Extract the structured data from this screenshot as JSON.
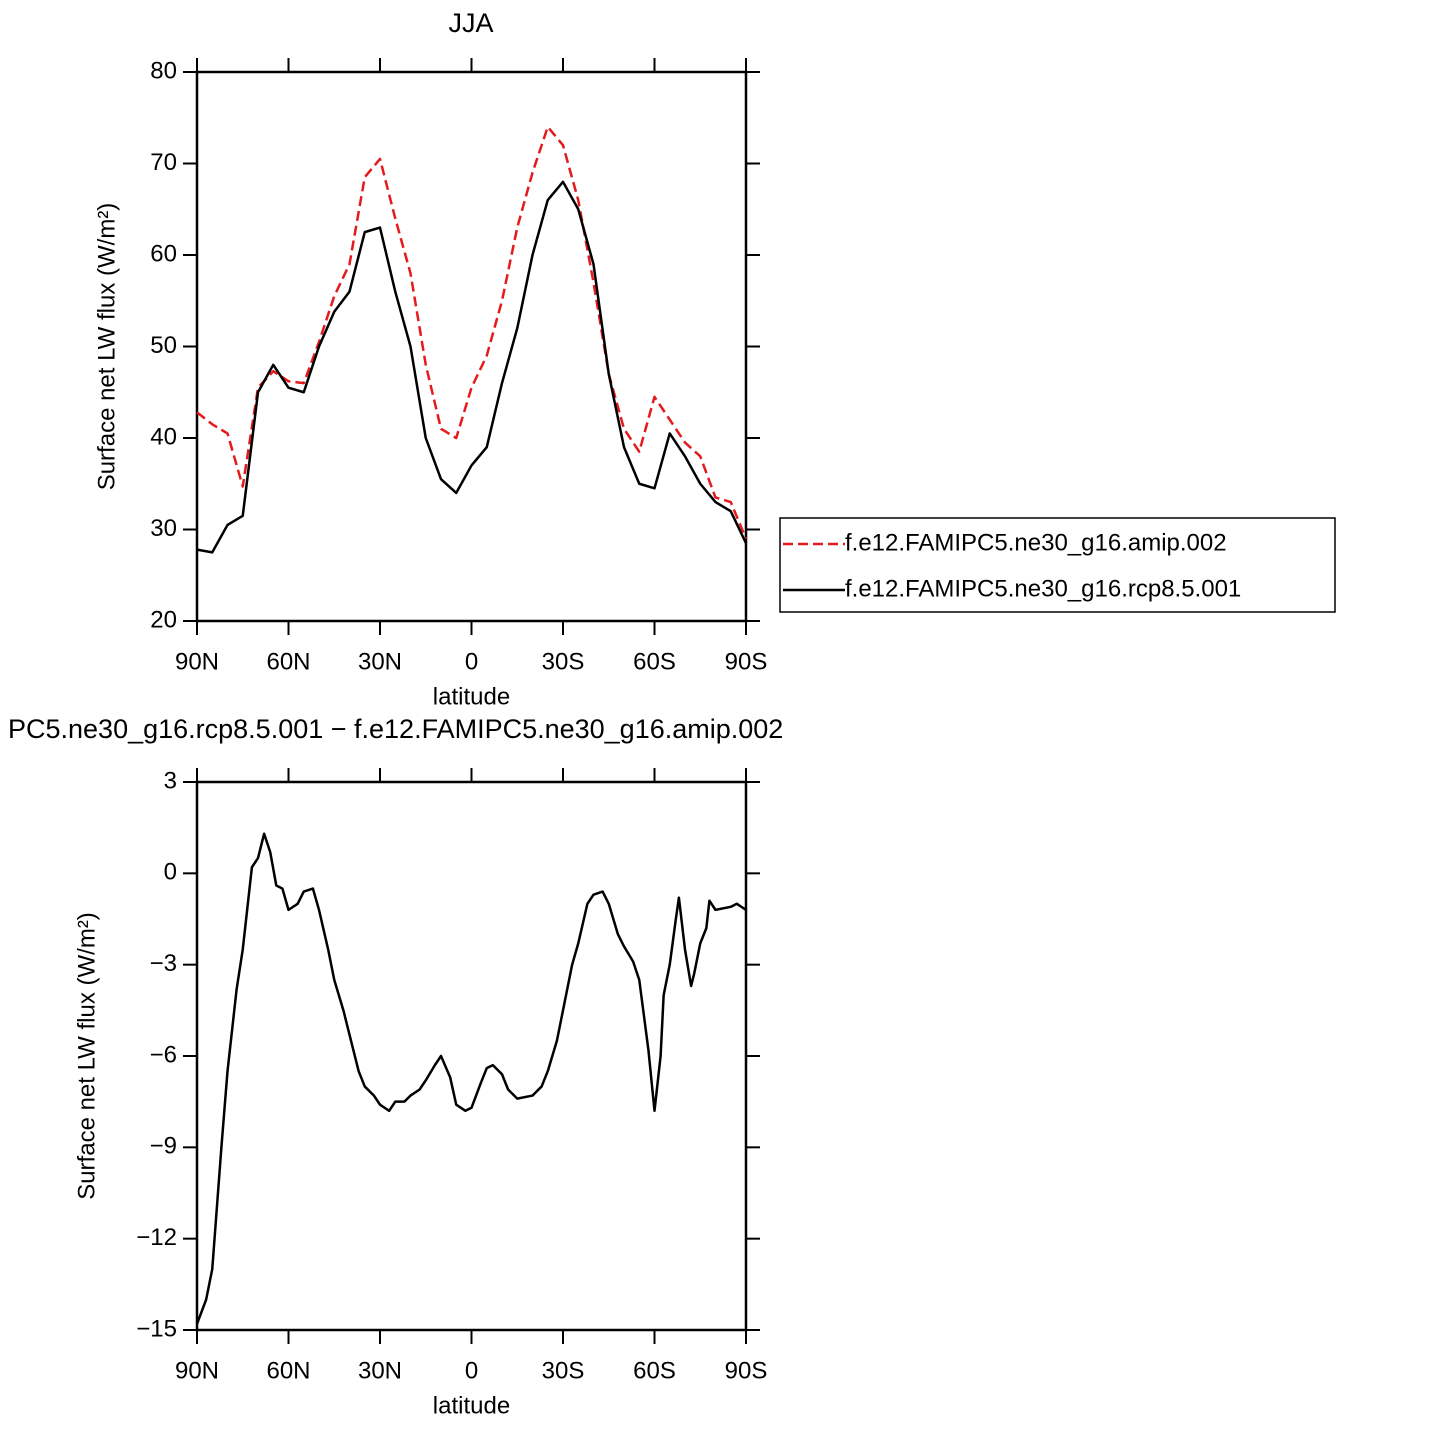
{
  "chart_data": [
    {
      "type": "line",
      "title": "JJA",
      "xlabel": "latitude",
      "ylabel": "Surface net LW flux (W/m²)",
      "x": [
        90,
        85,
        80,
        75,
        70,
        65,
        60,
        55,
        50,
        45,
        40,
        35,
        30,
        25,
        20,
        15,
        10,
        5,
        0,
        -5,
        -10,
        -15,
        -20,
        -25,
        -30,
        -35,
        -40,
        -45,
        -50,
        -55,
        -60,
        -65,
        -70,
        -75,
        -80,
        -85,
        -90
      ],
      "series": [
        {
          "name": "f.e12.FAMIPC5.ne30_g16.amip.002",
          "color": "#e41a1c",
          "line_style": "dashed",
          "values": [
            42.8,
            41.5,
            40.5,
            34.7,
            45.5,
            47.3,
            46.2,
            46,
            50.5,
            55.5,
            59,
            68.5,
            70.5,
            64,
            58,
            48,
            41,
            40,
            45.5,
            49,
            55,
            63,
            69,
            74,
            72,
            66,
            57,
            47,
            41,
            38.5,
            44.5,
            42,
            39.5,
            38,
            33.5,
            33,
            29
          ]
        },
        {
          "name": "f.e12.FAMIPC5.ne30_g16.rcp8.5.001",
          "color": "#000000",
          "line_style": "solid",
          "values": [
            27.8,
            27.5,
            30.5,
            31.5,
            45,
            48,
            45.5,
            45,
            50,
            53.8,
            56,
            62.5,
            63,
            56,
            50,
            40,
            35.5,
            34,
            37,
            39,
            46,
            52,
            60,
            66,
            68,
            65,
            59,
            47,
            39,
            35,
            34.5,
            40.5,
            38,
            35,
            33,
            32,
            28.5
          ]
        }
      ],
      "xlim": [
        90,
        -90
      ],
      "xticks": [
        {
          "value": 90,
          "label": "90N"
        },
        {
          "value": 60,
          "label": "60N"
        },
        {
          "value": 30,
          "label": "30N"
        },
        0,
        {
          "value": -30,
          "label": "30S"
        },
        {
          "value": -60,
          "label": "60S"
        },
        {
          "value": -90,
          "label": "90S"
        }
      ],
      "ylim": [
        20,
        80
      ],
      "yticks": [
        20,
        30,
        40,
        50,
        60,
        70,
        80
      ],
      "grid": false,
      "legend": "right"
    },
    {
      "type": "line",
      "title": "PC5.ne30_g16.rcp8.5.001 − f.e12.FAMIPC5.ne30_g16.amip.002",
      "xlabel": "latitude",
      "ylabel": "Surface net LW flux (W/m²)",
      "x": [
        90,
        87,
        85,
        82,
        80,
        77,
        75,
        72,
        70,
        68,
        66,
        64,
        62,
        60,
        57,
        55,
        52,
        50,
        47,
        45,
        42,
        40,
        37,
        35,
        32,
        30,
        27,
        25,
        22,
        20,
        17,
        15,
        12,
        10,
        7,
        5,
        2,
        0,
        -3,
        -5,
        -7,
        -10,
        -12,
        -15,
        -20,
        -23,
        -25,
        -28,
        -30,
        -33,
        -35,
        -38,
        -40,
        -43,
        -45,
        -48,
        -50,
        -53,
        -55,
        -58,
        -60,
        -62,
        -63,
        -65,
        -67,
        -68,
        -70,
        -72,
        -73,
        -75,
        -77,
        -78,
        -80,
        -85,
        -87,
        -90
      ],
      "values": [
        -14.8,
        -14,
        -13,
        -9,
        -6.5,
        -3.8,
        -2.5,
        0.2,
        0.5,
        1.3,
        0.7,
        -0.4,
        -0.5,
        -1.2,
        -1,
        -0.6,
        -0.5,
        -1.2,
        -2.5,
        -3.5,
        -4.5,
        -5.3,
        -6.5,
        -7,
        -7.3,
        -7.6,
        -7.8,
        -7.5,
        -7.5,
        -7.3,
        -7.1,
        -6.8,
        -6.3,
        -6,
        -6.7,
        -7.6,
        -7.8,
        -7.7,
        -6.9,
        -6.4,
        -6.3,
        -6.6,
        -7.1,
        -7.4,
        -7.3,
        -7,
        -6.5,
        -5.5,
        -4.5,
        -3,
        -2.3,
        -1,
        -0.7,
        -0.6,
        -1,
        -2,
        -2.4,
        -2.9,
        -3.5,
        -5.8,
        -7.8,
        -6,
        -4,
        -3,
        -1.5,
        -0.8,
        -2.5,
        -3.7,
        -3.3,
        -2.3,
        -1.8,
        -0.9,
        -1.2,
        -1.1,
        -1,
        -1.2
      ],
      "color": "#000000",
      "xlim": [
        90,
        -90
      ],
      "xticks": [
        {
          "value": 90,
          "label": "90N"
        },
        {
          "value": 60,
          "label": "60N"
        },
        {
          "value": 30,
          "label": "30N"
        },
        0,
        {
          "value": -30,
          "label": "30S"
        },
        {
          "value": -60,
          "label": "60S"
        },
        {
          "value": -90,
          "label": "90S"
        }
      ],
      "ylim": [
        -15,
        3
      ],
      "yticks": [
        {
          "value": -15,
          "label": "−15"
        },
        {
          "value": -12,
          "label": "−12"
        },
        {
          "value": -9,
          "label": "−9"
        },
        {
          "value": -6,
          "label": "−6"
        },
        {
          "value": -3,
          "label": "−3"
        },
        0,
        3
      ],
      "grid": false
    }
  ]
}
